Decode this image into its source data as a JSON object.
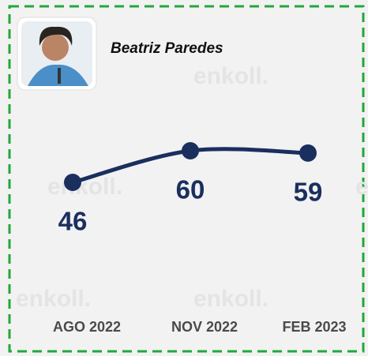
{
  "chart_data": {
    "type": "line",
    "title": "Beatriz Paredes",
    "watermark": "enkoll.",
    "categories": [
      "AGO 2022",
      "NOV 2022",
      "FEB 2023"
    ],
    "values": [
      46,
      60,
      59
    ],
    "color": "#1b2f5e"
  }
}
